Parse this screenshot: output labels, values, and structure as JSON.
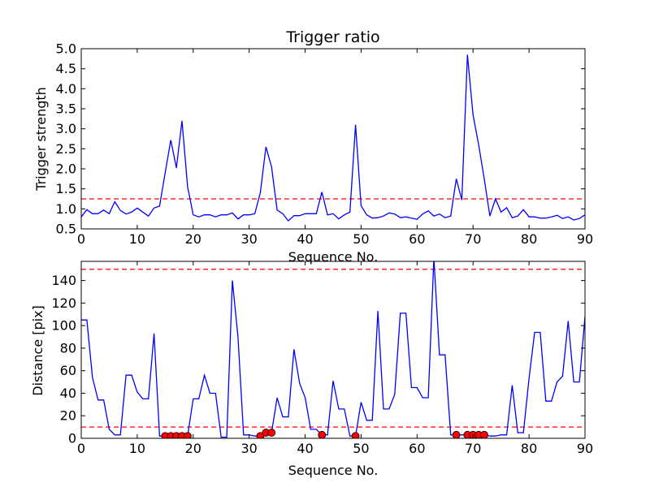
{
  "colors": {
    "line": "#0000ff",
    "threshold": "#ff0000",
    "marker_fill": "#ff0000",
    "marker_edge": "#000000",
    "axes": "#000000",
    "background": "#ffffff"
  },
  "chart_data": [
    {
      "type": "line",
      "title": "Trigger ratio",
      "xlabel": "Sequence No.",
      "ylabel": "Trigger strength",
      "xlim": [
        0,
        90
      ],
      "ylim": [
        0.5,
        5.0
      ],
      "xticks": [
        0,
        10,
        20,
        30,
        40,
        50,
        60,
        70,
        80,
        90
      ],
      "yticks": [
        0.5,
        1.0,
        1.5,
        2.0,
        2.5,
        3.0,
        3.5,
        4.0,
        4.5,
        5.0
      ],
      "ytick_labels": [
        "0.5",
        "1.0",
        "1.5",
        "2.0",
        "2.5",
        "3.0",
        "3.5",
        "4.0",
        "4.5",
        "5.0"
      ],
      "grid": false,
      "series": [
        {
          "style": "solid",
          "x": [
            0,
            1,
            2,
            3,
            4,
            5,
            6,
            7,
            8,
            9,
            10,
            11,
            12,
            13,
            14,
            15,
            16,
            17,
            18,
            19,
            20,
            21,
            22,
            23,
            24,
            25,
            26,
            27,
            28,
            29,
            30,
            31,
            32,
            33,
            34,
            35,
            36,
            37,
            38,
            39,
            40,
            41,
            42,
            43,
            44,
            45,
            46,
            47,
            48,
            49,
            50,
            51,
            52,
            53,
            54,
            55,
            56,
            57,
            58,
            59,
            60,
            61,
            62,
            63,
            64,
            65,
            66,
            67,
            68,
            69,
            70,
            71,
            72,
            73,
            74,
            75,
            76,
            77,
            78,
            79,
            80,
            81,
            82,
            83,
            84,
            85,
            86,
            87,
            88,
            89,
            90
          ],
          "y": [
            0.8,
            0.98,
            0.88,
            0.88,
            0.97,
            0.88,
            1.18,
            0.96,
            0.87,
            0.92,
            1.02,
            0.92,
            0.82,
            1.02,
            1.07,
            1.9,
            2.72,
            2.02,
            3.2,
            1.55,
            0.85,
            0.8,
            0.85,
            0.85,
            0.8,
            0.85,
            0.85,
            0.9,
            0.75,
            0.85,
            0.85,
            0.88,
            1.4,
            2.55,
            2.05,
            0.97,
            0.88,
            0.7,
            0.83,
            0.83,
            0.88,
            0.88,
            0.88,
            1.42,
            0.85,
            0.88,
            0.75,
            0.85,
            0.92,
            3.1,
            1.08,
            0.85,
            0.77,
            0.78,
            0.82,
            0.9,
            0.87,
            0.78,
            0.8,
            0.77,
            0.74,
            0.87,
            0.95,
            0.82,
            0.87,
            0.78,
            0.82,
            1.75,
            1.22,
            4.85,
            3.35,
            2.6,
            1.75,
            0.82,
            1.25,
            0.92,
            1.03,
            0.78,
            0.82,
            0.98,
            0.8,
            0.8,
            0.77,
            0.77,
            0.8,
            0.84,
            0.76,
            0.8,
            0.72,
            0.76,
            0.85
          ]
        }
      ],
      "hlines": [
        {
          "y": 1.25,
          "style": "dashed"
        }
      ]
    },
    {
      "type": "line",
      "title": "",
      "xlabel": "Sequence No.",
      "ylabel": "Distance [pix]",
      "xlim": [
        0,
        90
      ],
      "ylim": [
        0,
        157
      ],
      "xticks": [
        0,
        10,
        20,
        30,
        40,
        50,
        60,
        70,
        80,
        90
      ],
      "yticks": [
        0,
        20,
        40,
        60,
        80,
        100,
        120,
        140
      ],
      "ytick_labels": [
        "0",
        "20",
        "40",
        "60",
        "80",
        "100",
        "120",
        "140"
      ],
      "grid": false,
      "series": [
        {
          "style": "solid",
          "x": [
            0,
            1,
            2,
            3,
            4,
            5,
            6,
            7,
            8,
            9,
            10,
            11,
            12,
            13,
            14,
            15,
            16,
            17,
            18,
            19,
            20,
            21,
            22,
            23,
            24,
            25,
            26,
            27,
            28,
            29,
            30,
            31,
            32,
            33,
            34,
            35,
            36,
            37,
            38,
            39,
            40,
            41,
            42,
            43,
            44,
            45,
            46,
            47,
            48,
            49,
            50,
            51,
            52,
            53,
            54,
            55,
            56,
            57,
            58,
            59,
            60,
            61,
            62,
            63,
            64,
            65,
            66,
            67,
            68,
            69,
            70,
            71,
            72,
            73,
            74,
            75,
            76,
            77,
            78,
            79,
            80,
            81,
            82,
            83,
            84,
            85,
            86,
            87,
            88,
            89,
            90
          ],
          "y": [
            105,
            105,
            54,
            34,
            34,
            8,
            3,
            3,
            56,
            56,
            41,
            35,
            35,
            93,
            2,
            2,
            2,
            2,
            2,
            2,
            35,
            35,
            56,
            40,
            40,
            1,
            1,
            140,
            90,
            3,
            3,
            2,
            2,
            5,
            5,
            36,
            19,
            19,
            79,
            49,
            36,
            8,
            8,
            3,
            3,
            51,
            26,
            26,
            2,
            2,
            32,
            16,
            16,
            113,
            26,
            26,
            39,
            111,
            111,
            45,
            45,
            36,
            36,
            160,
            74,
            74,
            3,
            3,
            3,
            3,
            3,
            3,
            3,
            2,
            2,
            3,
            3,
            47,
            5,
            5,
            53,
            94,
            94,
            33,
            33,
            50,
            55,
            104,
            50,
            50,
            108
          ]
        },
        {
          "style": "markers",
          "x": [
            15,
            16,
            17,
            18,
            19,
            32,
            33,
            34,
            43,
            49,
            67,
            69,
            70,
            71,
            72
          ],
          "y": [
            2,
            2,
            2,
            2,
            2,
            2,
            5,
            5,
            3,
            2,
            3,
            3,
            3,
            3,
            3
          ]
        }
      ],
      "hlines": [
        {
          "y": 150,
          "style": "dashed"
        },
        {
          "y": 10,
          "style": "dashed"
        }
      ]
    }
  ]
}
